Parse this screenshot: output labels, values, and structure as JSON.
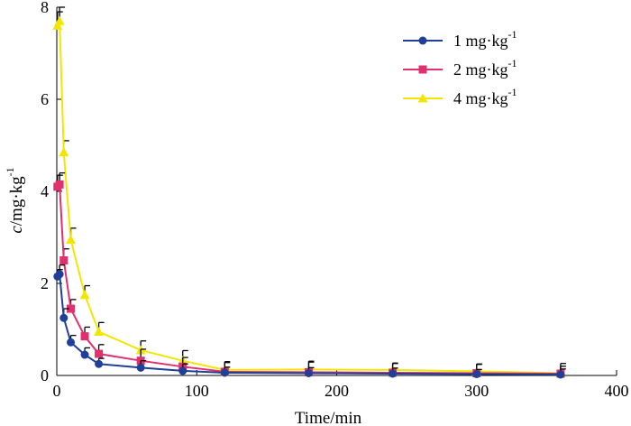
{
  "chart_data": {
    "type": "line",
    "title": "",
    "xlabel": "Time/min",
    "ylabel": {
      "italic": "c",
      "rest": "/mg·kg",
      "sup": "-1"
    },
    "xlim": [
      0,
      400
    ],
    "ylim": [
      0,
      8
    ],
    "xticks": [
      "0",
      "100",
      "200",
      "300",
      "400"
    ],
    "yticks": [
      "0",
      "2",
      "4",
      "6",
      "8"
    ],
    "legend_position": "top-right",
    "x": [
      0.5,
      2,
      5,
      10,
      20,
      30,
      60,
      90,
      120,
      180,
      240,
      300,
      360
    ],
    "series": [
      {
        "name": "1 mg·kg",
        "name_sup": "-1",
        "color": "#1f3f99",
        "marker": "circle",
        "values": [
          2.15,
          2.2,
          1.25,
          0.72,
          0.45,
          0.25,
          0.17,
          0.1,
          0.06,
          0.05,
          0.04,
          0.03,
          0.02
        ],
        "errors": [
          0.15,
          0.2,
          0.2,
          0.15,
          0.15,
          0.12,
          0.15,
          0.15,
          0.12,
          0.12,
          0.12,
          0.1,
          0.12
        ]
      },
      {
        "name": "2 mg·kg",
        "name_sup": "-1",
        "color": "#e0306e",
        "marker": "square",
        "values": [
          4.1,
          4.15,
          2.5,
          1.45,
          0.85,
          0.47,
          0.32,
          0.19,
          0.08,
          0.07,
          0.06,
          0.05,
          0.04
        ],
        "errors": [
          0.25,
          0.25,
          0.25,
          0.2,
          0.2,
          0.2,
          0.25,
          0.2,
          0.2,
          0.22,
          0.2,
          0.2,
          0.22
        ]
      },
      {
        "name": "4 mg·kg",
        "name_sup": "-1",
        "color": "#f2e600",
        "marker": "triangle",
        "values": [
          7.6,
          7.7,
          4.85,
          2.95,
          1.75,
          0.95,
          0.55,
          0.32,
          0.12,
          0.13,
          0.12,
          0.09,
          0.05
        ],
        "errors": [
          0.3,
          0.3,
          0.25,
          0.25,
          0.2,
          0.2,
          0.2,
          0.22,
          0.18,
          0.18,
          0.15,
          0.15,
          0.15
        ]
      }
    ]
  }
}
